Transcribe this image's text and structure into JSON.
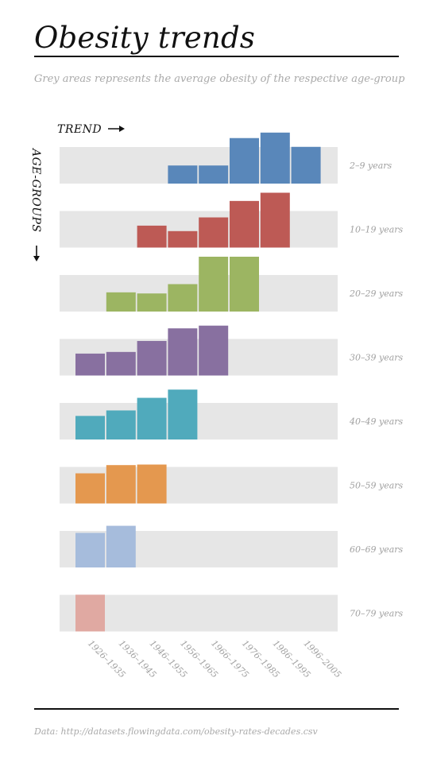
{
  "page": {
    "title": "Obesity trends",
    "subtitle": "Grey areas represents the average obesity of the respective age-group",
    "source": "Data: http://datasets.flowingdata.com/obesity-rates-decades.csv"
  },
  "chart_data": {
    "type": "bar",
    "trend_label": "TREND",
    "age_label": "AGE-GROUPS",
    "categories": [
      "1926–1935",
      "1936–1945",
      "1946–1955",
      "1956–1965",
      "1966–1975",
      "1976–1985",
      "1986–1995",
      "1996–2005"
    ],
    "series": [
      {
        "name": "2–9 years",
        "color": "#5987ba",
        "avg": 0.67,
        "values": [
          null,
          null,
          null,
          0.33,
          0.33,
          0.83,
          0.93,
          0.67
        ]
      },
      {
        "name": "10–19 years",
        "color": "#bd5a55",
        "avg": 0.67,
        "values": [
          null,
          null,
          0.4,
          0.3,
          0.55,
          0.85,
          1.0,
          null
        ]
      },
      {
        "name": "20–29 years",
        "color": "#9cb562",
        "avg": 0.67,
        "values": [
          null,
          0.35,
          0.33,
          0.5,
          1.0,
          1.0,
          null,
          null
        ]
      },
      {
        "name": "30–39 years",
        "color": "#8870a0",
        "avg": 0.67,
        "values": [
          0.4,
          0.43,
          0.63,
          0.86,
          0.91,
          null,
          null,
          null
        ]
      },
      {
        "name": "40–49 years",
        "color": "#50aabc",
        "avg": 0.67,
        "values": [
          0.43,
          0.53,
          0.76,
          0.91,
          null,
          null,
          null,
          null
        ]
      },
      {
        "name": "50–59 years",
        "color": "#e4984f",
        "avg": 0.67,
        "values": [
          0.55,
          0.7,
          0.71,
          null,
          null,
          null,
          null,
          null
        ]
      },
      {
        "name": "60–69 years",
        "color": "#a6bcdc",
        "avg": 0.67,
        "values": [
          0.63,
          0.76,
          null,
          null,
          null,
          null,
          null,
          null
        ]
      },
      {
        "name": "70–79 years",
        "color": "#e0a9a2",
        "avg": 0.67,
        "values": [
          0.67,
          null,
          null,
          null,
          null,
          null,
          null,
          null
        ]
      }
    ],
    "grid": false,
    "legend": "none"
  }
}
